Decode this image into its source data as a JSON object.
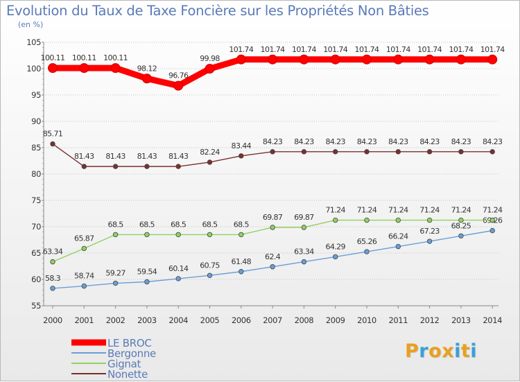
{
  "title": "Evolution du Taux de Taxe Foncière sur les Propriétés Non Bâties",
  "subtitle": "(en %)",
  "logo": {
    "text": "Proxiti",
    "letter_colors": [
      "#e8a020",
      "#3aa0d8",
      "#e8a020",
      "#e8a020",
      "#3aa0d8",
      "#e8a020",
      "#3aa0d8"
    ]
  },
  "chart_data": {
    "type": "line",
    "x": [
      "2000",
      "2001",
      "2002",
      "2003",
      "2004",
      "2005",
      "2006",
      "2007",
      "2008",
      "2009",
      "2010",
      "2011",
      "2012",
      "2013",
      "2014"
    ],
    "ylim": [
      55,
      105
    ],
    "yticks": [
      "55",
      "60",
      "65",
      "70",
      "75",
      "80",
      "85",
      "90",
      "95",
      "100",
      "105"
    ],
    "grid": "horizontal-dotted",
    "legend_position": "bottom-left",
    "series": [
      {
        "name": "LE BROC",
        "color": "#ff0000",
        "emphasis": true,
        "values": [
          100.11,
          100.11,
          100.11,
          98.12,
          96.76,
          99.98,
          101.74,
          101.74,
          101.74,
          101.74,
          101.74,
          101.74,
          101.74,
          101.74,
          101.74
        ],
        "labels": [
          "100.11",
          "100.11",
          "100.11",
          "98.12",
          "96.76",
          "99.98",
          "101.74",
          "101.74",
          "101.74",
          "101.74",
          "101.74",
          "101.74",
          "101.74",
          "101.74",
          "101.74"
        ]
      },
      {
        "name": "Bergonne",
        "color": "#6a9ed6",
        "values": [
          58.3,
          58.74,
          59.27,
          59.54,
          60.14,
          60.75,
          61.48,
          62.4,
          63.34,
          64.29,
          65.26,
          66.24,
          67.23,
          68.25,
          69.26
        ],
        "labels": [
          "58.3",
          "58.74",
          "59.27",
          "59.54",
          "60.14",
          "60.75",
          "61.48",
          "62.4",
          "63.34",
          "64.29",
          "65.26",
          "66.24",
          "67.23",
          "68.25",
          "69.26"
        ]
      },
      {
        "name": "Gignat",
        "color": "#92d060",
        "values": [
          63.34,
          65.87,
          68.5,
          68.5,
          68.5,
          68.5,
          68.5,
          69.87,
          69.87,
          71.24,
          71.24,
          71.24,
          71.24,
          71.24,
          71.24
        ],
        "labels": [
          "63.34",
          "65.87",
          "68.5",
          "68.5",
          "68.5",
          "68.5",
          "68.5",
          "69.87",
          "69.87",
          "71.24",
          "71.24",
          "71.24",
          "71.24",
          "71.24",
          "71.24"
        ]
      },
      {
        "name": "Nonette",
        "color": "#7a3030",
        "values": [
          85.71,
          81.43,
          81.43,
          81.43,
          81.43,
          82.24,
          83.44,
          84.23,
          84.23,
          84.23,
          84.23,
          84.23,
          84.23,
          84.23,
          84.23
        ],
        "labels": [
          "85.71",
          "81.43",
          "81.43",
          "81.43",
          "81.43",
          "82.24",
          "83.44",
          "84.23",
          "84.23",
          "84.23",
          "84.23",
          "84.23",
          "84.23",
          "84.23",
          "84.23"
        ]
      }
    ]
  }
}
